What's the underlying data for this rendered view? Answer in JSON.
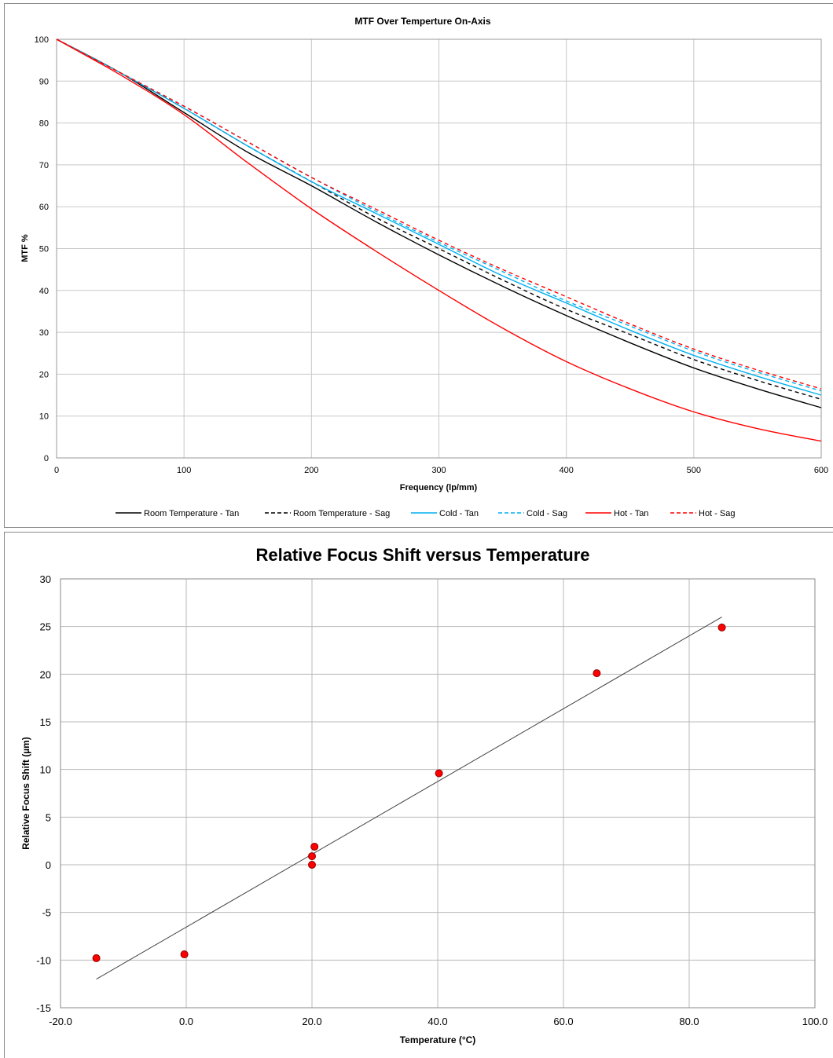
{
  "chart_data": [
    {
      "type": "line",
      "title": "MTF Over Temperture On-Axis",
      "xlabel": "Frequency (lp/mm)",
      "ylabel": "MTF %",
      "xlim": [
        0,
        600
      ],
      "ylim": [
        0,
        100
      ],
      "xticks": [
        "0",
        "100",
        "200",
        "300",
        "400",
        "500",
        "600"
      ],
      "yticks": [
        "0",
        "10",
        "20",
        "30",
        "40",
        "50",
        "60",
        "70",
        "80",
        "90",
        "100"
      ],
      "grid": true,
      "legend_position": "bottom",
      "x": [
        0,
        50,
        100,
        150,
        200,
        250,
        300,
        350,
        400,
        450,
        500,
        550,
        600
      ],
      "series": [
        {
          "name": "Room Temperature - Tan",
          "color": "#000000",
          "style": "solid",
          "values": [
            100,
            92,
            82.5,
            73,
            65,
            56.5,
            48.5,
            41,
            34,
            27.5,
            21.5,
            16.5,
            12
          ]
        },
        {
          "name": "Room Temperature - Sag",
          "color": "#000000",
          "style": "dashed",
          "values": [
            100,
            92,
            83.5,
            74.5,
            66,
            57.5,
            50,
            42.5,
            35.5,
            29.5,
            23.5,
            18.5,
            14
          ]
        },
        {
          "name": "Cold - Tan",
          "color": "#00b0f0",
          "style": "solid",
          "values": [
            100,
            92,
            83.5,
            74.5,
            66,
            58.5,
            51,
            43.5,
            37,
            30.5,
            24.5,
            19.5,
            15
          ]
        },
        {
          "name": "Cold - Sag",
          "color": "#00b0f0",
          "style": "dashed",
          "values": [
            100,
            92,
            84,
            75.5,
            67,
            59,
            51.5,
            44.5,
            37.5,
            31.5,
            25.5,
            20.5,
            16
          ]
        },
        {
          "name": "Hot - Tan",
          "color": "#ff0000",
          "style": "solid",
          "values": [
            100,
            91.5,
            82,
            70.5,
            59.5,
            49.5,
            40,
            31,
            23,
            16.5,
            11,
            7,
            4
          ]
        },
        {
          "name": "Hot - Sag",
          "color": "#ff0000",
          "style": "dashed",
          "values": [
            100,
            92,
            84,
            75.5,
            67,
            59.5,
            52,
            45,
            38.5,
            32,
            26,
            21,
            16.5
          ]
        }
      ]
    },
    {
      "type": "scatter",
      "title": "Relative Focus Shift versus Temperature",
      "xlabel": "Temperature (°C)",
      "ylabel": "Relative Focus Shift (µm)",
      "xlim": [
        -20,
        100
      ],
      "ylim": [
        -15,
        30
      ],
      "xticks": [
        "-20.0",
        "0.0",
        "20.0",
        "40.0",
        "60.0",
        "80.0",
        "100.0"
      ],
      "yticks": [
        "-15",
        "-10",
        "-5",
        "0",
        "5",
        "10",
        "15",
        "20",
        "25",
        "30"
      ],
      "grid": true,
      "marker_color": "#ff0000",
      "trendline_color": "#404040",
      "points": [
        {
          "x": -14.3,
          "y": -9.8
        },
        {
          "x": -0.3,
          "y": -9.4
        },
        {
          "x": 20.0,
          "y": 0.0
        },
        {
          "x": 20.0,
          "y": 0.9
        },
        {
          "x": 20.4,
          "y": 1.9
        },
        {
          "x": 40.2,
          "y": 9.6
        },
        {
          "x": 65.3,
          "y": 20.1
        },
        {
          "x": 85.2,
          "y": 24.9
        }
      ],
      "trendline": {
        "x": [
          -14.3,
          85.2
        ],
        "y": [
          -12.0,
          26.0
        ]
      }
    }
  ]
}
